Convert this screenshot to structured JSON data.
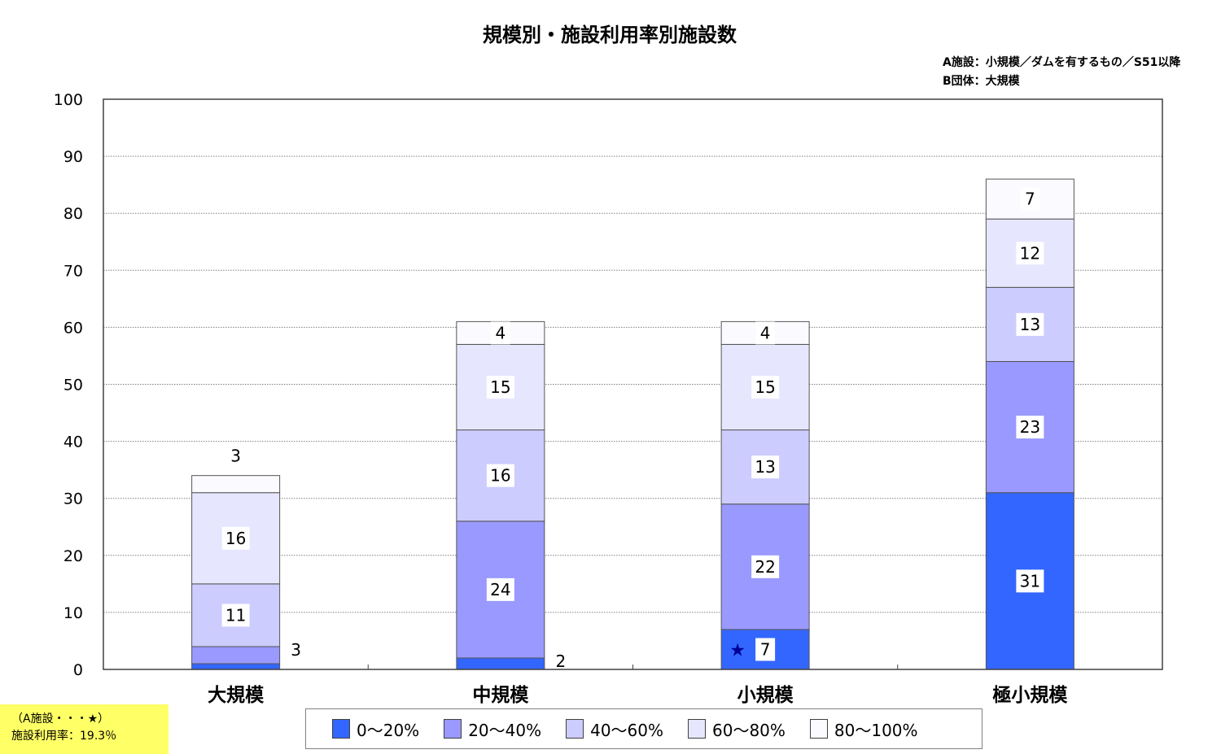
{
  "notes": {
    "a_def": "A施設：小規模／ダムを有するもの／S51以降",
    "b_def": "B団体：大規模",
    "highlight_line1": "（A施設・・・★）",
    "highlight_line2": "施設利用率：19.3％",
    "highlight_marker": "★"
  },
  "colors": {
    "series": [
      "#3366ff",
      "#9999ff",
      "#ccccff",
      "#e6e6ff",
      "#fafaff"
    ],
    "grid": "#808080",
    "highlight_box": "#ffff66"
  },
  "chart_data": {
    "type": "bar",
    "stacked": true,
    "title": "規模別・施設利用率別施設数",
    "categories": [
      "大規模",
      "中規模",
      "小規模",
      "極小規模"
    ],
    "series": [
      {
        "name": "0～20%",
        "values": [
          1,
          2,
          7,
          31
        ],
        "labels": [
          "",
          "2",
          "7",
          "31"
        ]
      },
      {
        "name": "20～40%",
        "values": [
          3,
          24,
          22,
          23
        ],
        "labels": [
          "3",
          "24",
          "22",
          "23"
        ]
      },
      {
        "name": "40～60%",
        "values": [
          11,
          16,
          13,
          13
        ],
        "labels": [
          "11",
          "16",
          "13",
          "13"
        ]
      },
      {
        "name": "60～80%",
        "values": [
          16,
          15,
          15,
          12
        ],
        "labels": [
          "16",
          "15",
          "15",
          "12"
        ]
      },
      {
        "name": "80～100%",
        "values": [
          3,
          4,
          4,
          7
        ],
        "labels": [
          "3",
          "4",
          "4",
          "7"
        ]
      }
    ],
    "ylim": [
      0,
      100
    ],
    "yticks": [
      0,
      10,
      20,
      30,
      40,
      50,
      60,
      70,
      80,
      90,
      100
    ],
    "grid": true,
    "legend_position": "bottom",
    "marker": {
      "category": "小規模",
      "series": "0～20%",
      "symbol": "★"
    }
  }
}
